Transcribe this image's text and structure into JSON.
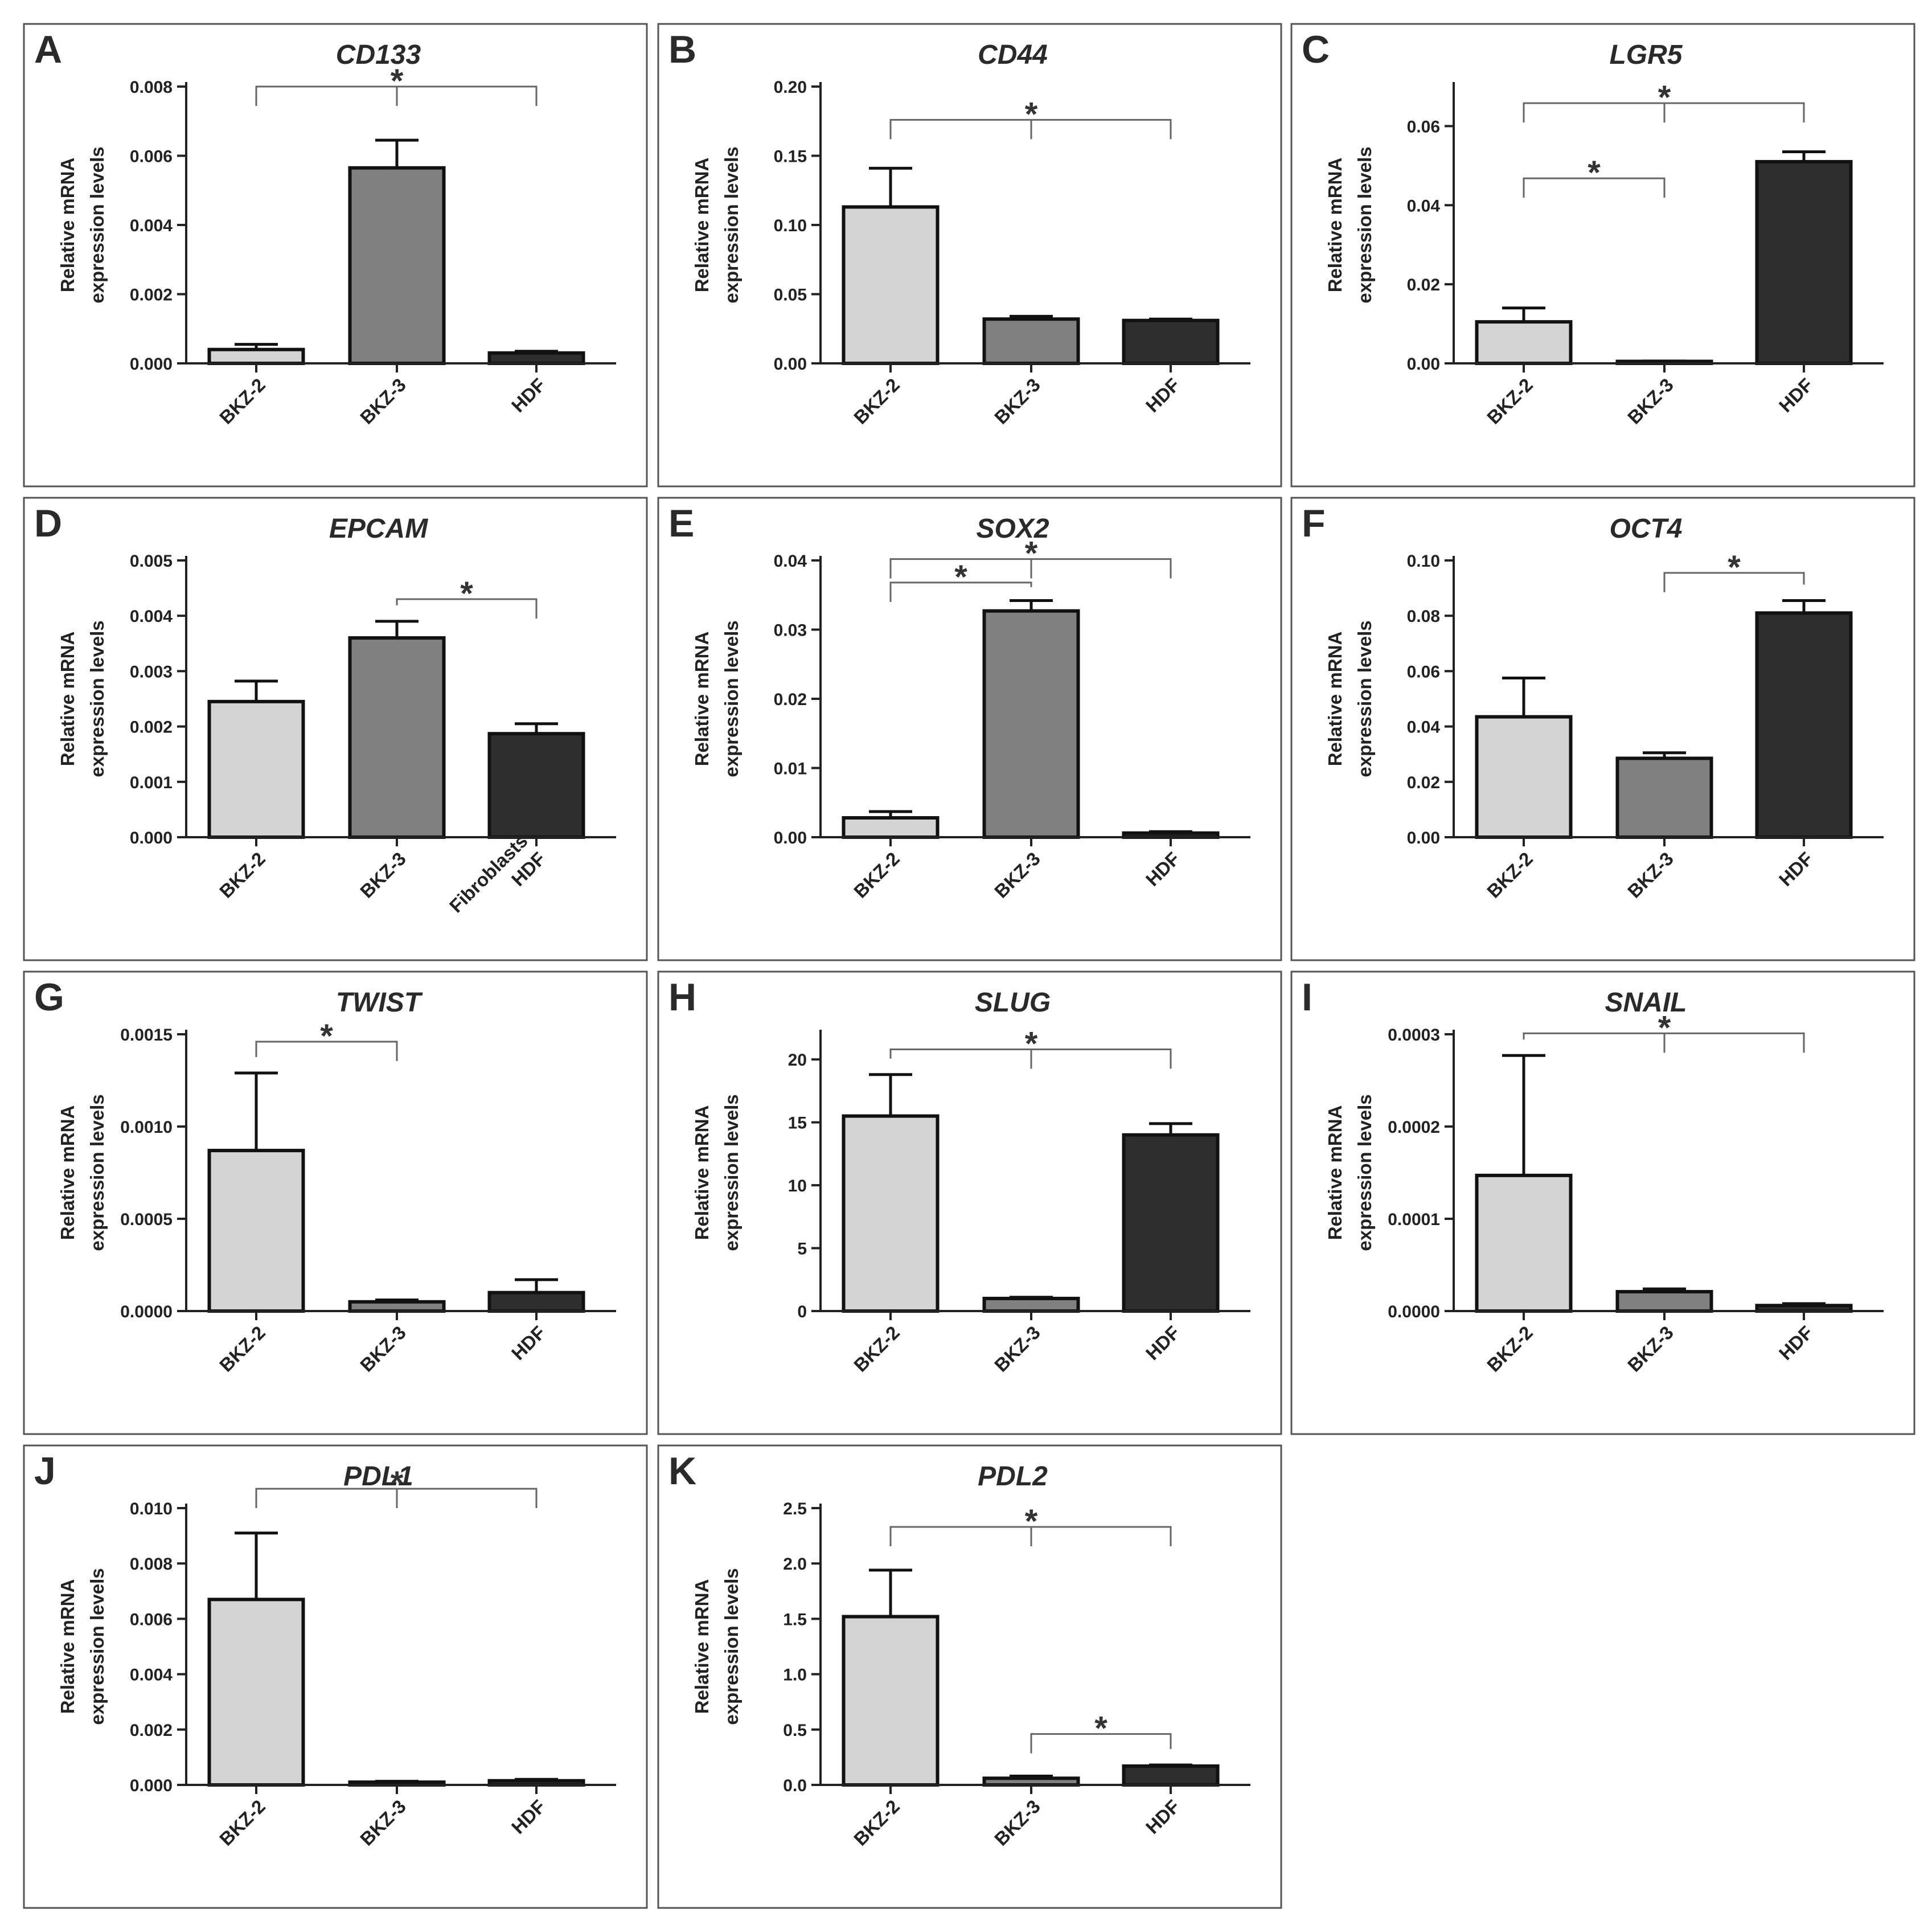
{
  "figure": {
    "colors": {
      "BKZ-2": "#d4d4d4",
      "BKZ-3": "#808080",
      "HDF": "#2e2e2e"
    },
    "significance_symbol": "*"
  },
  "chart_data": [
    {
      "panel": "A",
      "title": "CD133",
      "type": "bar",
      "ylabel": [
        "Relative mRNA",
        "expression levels"
      ],
      "categories": [
        [
          "BKZ-2"
        ],
        [
          "BKZ-3"
        ],
        [
          "HDF"
        ]
      ],
      "values": [
        0.0004,
        0.00565,
        0.0003
      ],
      "errors": [
        0.00015,
        0.0008,
        5e-05
      ],
      "ylim": [
        0,
        0.008
      ],
      "yticks": [
        "0.000",
        "0.002",
        "0.004",
        "0.006",
        "0.008"
      ],
      "brackets": [
        {
          "from": 0,
          "to": 2,
          "mid": 1,
          "level": 0.008,
          "label": "*"
        }
      ]
    },
    {
      "panel": "B",
      "title": "CD44",
      "type": "bar",
      "ylabel": [
        "Relative mRNA",
        "expression levels"
      ],
      "categories": [
        [
          "BKZ-2"
        ],
        [
          "BKZ-3"
        ],
        [
          "HDF"
        ]
      ],
      "values": [
        0.113,
        0.032,
        0.031
      ],
      "errors": [
        0.028,
        0.002,
        0.001
      ],
      "ylim": [
        0,
        0.2
      ],
      "yticks": [
        "0.00",
        "0.05",
        "0.10",
        "0.15",
        "0.20"
      ],
      "brackets": [
        {
          "from": 0,
          "to": 2,
          "mid": 1,
          "level": 0.176,
          "label": "*"
        }
      ]
    },
    {
      "panel": "C",
      "title": "LGR5",
      "type": "bar",
      "ylabel": [
        "Relative mRNA",
        "expression levels"
      ],
      "categories": [
        [
          "BKZ-2"
        ],
        [
          "BKZ-3"
        ],
        [
          "HDF"
        ]
      ],
      "values": [
        0.0105,
        0.0005,
        0.051
      ],
      "errors": [
        0.0035,
        0.0001,
        0.0025
      ],
      "ylim": [
        0,
        0.07
      ],
      "yticks": [
        "0.00",
        "0.02",
        "0.04",
        "0.06"
      ],
      "brackets": [
        {
          "from": 0,
          "to": 2,
          "mid": 1,
          "level": 0.0658,
          "label": "*"
        },
        {
          "from": 0,
          "to": 1,
          "mid": null,
          "level": 0.0468,
          "label": "*"
        }
      ]
    },
    {
      "panel": "D",
      "title": "EPCAM",
      "type": "bar",
      "ylabel": [
        "Relative mRNA",
        "expression levels"
      ],
      "categories": [
        [
          "BKZ-2"
        ],
        [
          "BKZ-3"
        ],
        [
          "Fibroblasts",
          "HDF"
        ]
      ],
      "values": [
        0.00245,
        0.0036,
        0.00187
      ],
      "errors": [
        0.00037,
        0.0003,
        0.00018
      ],
      "ylim": [
        0,
        0.005
      ],
      "yticks": [
        "0.000",
        "0.001",
        "0.002",
        "0.003",
        "0.004",
        "0.005"
      ],
      "brackets": [
        {
          "from": 1,
          "to": 2,
          "mid": null,
          "level": 0.0043,
          "label": "*"
        }
      ]
    },
    {
      "panel": "E",
      "title": "SOX2",
      "type": "bar",
      "ylabel": [
        "Relative mRNA",
        "expression levels"
      ],
      "categories": [
        [
          "BKZ-2"
        ],
        [
          "BKZ-3"
        ],
        [
          "HDF"
        ]
      ],
      "values": [
        0.0028,
        0.0327,
        0.0006
      ],
      "errors": [
        0.0009,
        0.0015,
        0.0002
      ],
      "ylim": [
        0,
        0.04
      ],
      "yticks": [
        "0.00",
        "0.01",
        "0.02",
        "0.03",
        "0.04"
      ],
      "brackets": [
        {
          "from": 0,
          "to": 2,
          "mid": 1,
          "level": 0.0402,
          "label": "*"
        },
        {
          "from": 0,
          "to": 1,
          "mid": null,
          "level": 0.0368,
          "label": "*"
        }
      ]
    },
    {
      "panel": "F",
      "title": "OCT4",
      "type": "bar",
      "ylabel": [
        "Relative mRNA",
        "expression levels"
      ],
      "categories": [
        [
          "BKZ-2"
        ],
        [
          "BKZ-3"
        ],
        [
          "HDF"
        ]
      ],
      "values": [
        0.0435,
        0.0285,
        0.081
      ],
      "errors": [
        0.014,
        0.002,
        0.0045
      ],
      "ylim": [
        0,
        0.1
      ],
      "yticks": [
        "0.00",
        "0.02",
        "0.04",
        "0.06",
        "0.08",
        "0.10"
      ],
      "brackets": [
        {
          "from": 1,
          "to": 2,
          "mid": null,
          "level": 0.0955,
          "label": "*"
        }
      ]
    },
    {
      "panel": "G",
      "title": "TWIST",
      "type": "bar",
      "ylabel": [
        "Relative mRNA",
        "expression levels"
      ],
      "categories": [
        [
          "BKZ-2"
        ],
        [
          "BKZ-3"
        ],
        [
          "HDF"
        ]
      ],
      "values": [
        0.00087,
        5e-05,
        0.0001
      ],
      "errors": [
        0.00042,
        1e-05,
        7e-05
      ],
      "ylim": [
        0,
        0.0015
      ],
      "yticks": [
        "0.0000",
        "0.0005",
        "0.0010",
        "0.0015"
      ],
      "brackets": [
        {
          "from": 0,
          "to": 1,
          "mid": null,
          "level": 0.00146,
          "label": "*"
        }
      ]
    },
    {
      "panel": "H",
      "title": "SLUG",
      "type": "bar",
      "ylabel": [
        "Relative mRNA",
        "expression levels"
      ],
      "categories": [
        [
          "BKZ-2"
        ],
        [
          "BKZ-3"
        ],
        [
          "HDF"
        ]
      ],
      "values": [
        15.5,
        1.0,
        14.0
      ],
      "errors": [
        3.3,
        0.1,
        0.9
      ],
      "ylim": [
        0,
        22
      ],
      "yticks": [
        "0",
        "5",
        "10",
        "15",
        "20"
      ],
      "brackets": [
        {
          "from": 0,
          "to": 2,
          "mid": 1,
          "level": 20.8,
          "label": "*"
        }
      ]
    },
    {
      "panel": "I",
      "title": "SNAIL",
      "type": "bar",
      "ylabel": [
        "Relative mRNA",
        "expression levels"
      ],
      "categories": [
        [
          "BKZ-2"
        ],
        [
          "BKZ-3"
        ],
        [
          "HDF"
        ]
      ],
      "values": [
        0.000147,
        2.1e-05,
        6e-06
      ],
      "errors": [
        0.00013,
        3e-06,
        2e-06
      ],
      "ylim": [
        0,
        0.0003
      ],
      "yticks": [
        "0.0000",
        "0.0001",
        "0.0002",
        "0.0003"
      ],
      "brackets": [
        {
          "from": 0,
          "to": 2,
          "mid": 1,
          "level": 0.000301,
          "label": "*"
        }
      ]
    },
    {
      "panel": "J",
      "title": "PDL1",
      "type": "bar",
      "ylabel": [
        "Relative mRNA",
        "expression levels"
      ],
      "categories": [
        [
          "BKZ-2"
        ],
        [
          "BKZ-3"
        ],
        [
          "HDF"
        ]
      ],
      "values": [
        0.0067,
        0.0001,
        0.00015
      ],
      "errors": [
        0.0024,
        3e-05,
        5e-05
      ],
      "ylim": [
        0,
        0.01
      ],
      "yticks": [
        "0.000",
        "0.002",
        "0.004",
        "0.006",
        "0.008",
        "0.010"
      ],
      "brackets": [
        {
          "from": 0,
          "to": 2,
          "mid": 1,
          "level": 0.0107,
          "label": "*"
        }
      ]
    },
    {
      "panel": "K",
      "title": "PDL2",
      "type": "bar",
      "ylabel": [
        "Relative mRNA",
        "expression levels"
      ],
      "categories": [
        [
          "BKZ-2"
        ],
        [
          "BKZ-3"
        ],
        [
          "HDF"
        ]
      ],
      "values": [
        1.52,
        0.06,
        0.17
      ],
      "errors": [
        0.42,
        0.02,
        0.01
      ],
      "ylim": [
        0,
        2.5
      ],
      "yticks": [
        "0.0",
        "0.5",
        "1.0",
        "1.5",
        "2.0",
        "2.5"
      ],
      "brackets": [
        {
          "from": 0,
          "to": 2,
          "mid": 1,
          "level": 2.33,
          "label": "*"
        },
        {
          "from": 1,
          "to": 2,
          "mid": null,
          "level": 0.46,
          "label": "*"
        }
      ]
    }
  ]
}
